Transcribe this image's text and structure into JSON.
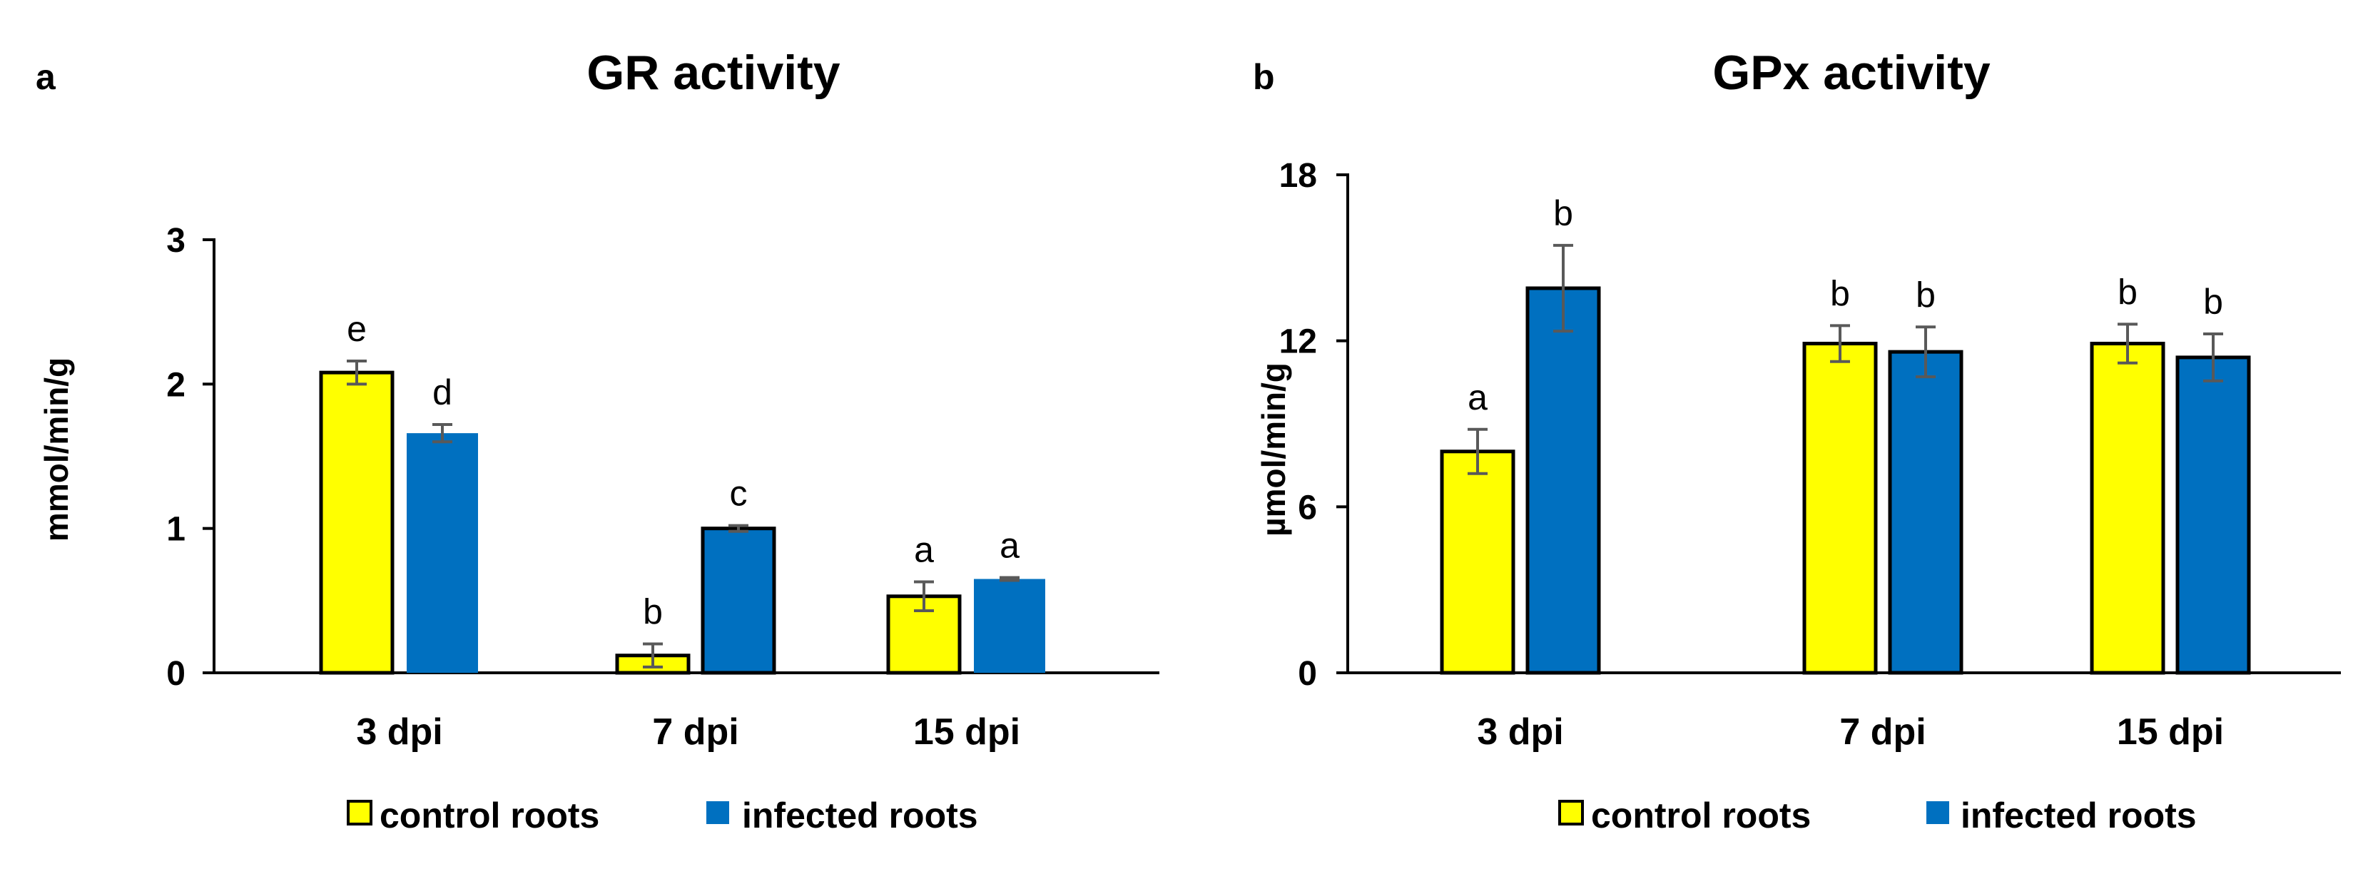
{
  "colors": {
    "control": "#FFFF00",
    "infected": "#0070C0",
    "axis": "#000000",
    "error_bar": "#595959"
  },
  "chart_data": [
    {
      "panel_label": "a",
      "type": "bar",
      "title": "GR activity",
      "xlabel": "",
      "ylabel": "mmol/min/g",
      "ylim": [
        0,
        3
      ],
      "yticks": [
        "0",
        "1",
        "2",
        "3"
      ],
      "categories": [
        "3 dpi",
        "7 dpi",
        "15 dpi"
      ],
      "series": [
        {
          "name": "control roots",
          "color_key": "control",
          "values": [
            2.08,
            0.12,
            0.53
          ],
          "errors": [
            0.08,
            0.08,
            0.1
          ],
          "letters": [
            "e",
            "b",
            "a"
          ],
          "outlined": true
        },
        {
          "name": "infected roots",
          "color_key": "infected",
          "values": [
            1.66,
            1.0,
            0.65
          ],
          "errors": [
            0.06,
            0.02,
            0.01
          ],
          "letters": [
            "d",
            "c",
            "a"
          ],
          "outlined_bars": [
            false,
            true,
            false
          ]
        }
      ],
      "legend": [
        {
          "label": "control roots",
          "color_key": "control"
        },
        {
          "label": "infected roots",
          "color_key": "infected"
        }
      ],
      "legend_placement": "bottom"
    },
    {
      "panel_label": "b",
      "type": "bar",
      "title": "GPx activity",
      "xlabel": "",
      "ylabel": "µmol/min/g",
      "ylim": [
        0,
        18
      ],
      "yticks": [
        "0",
        "6",
        "12",
        "18"
      ],
      "categories": [
        "3 dpi",
        "7 dpi",
        "15 dpi"
      ],
      "series": [
        {
          "name": "control roots",
          "color_key": "control",
          "values": [
            8.0,
            11.9,
            11.9
          ],
          "errors": [
            0.8,
            0.65,
            0.7
          ],
          "letters": [
            "a",
            "b",
            "b"
          ],
          "outlined": true
        },
        {
          "name": "infected roots",
          "color_key": "infected",
          "values": [
            13.9,
            11.6,
            11.4
          ],
          "errors": [
            1.55,
            0.9,
            0.85
          ],
          "letters": [
            "b",
            "b",
            "b"
          ],
          "outlined_bars": [
            true,
            true,
            true
          ]
        }
      ],
      "legend": [
        {
          "label": "control roots",
          "color_key": "control"
        },
        {
          "label": "infected roots",
          "color_key": "infected"
        }
      ],
      "legend_placement": "bottom"
    }
  ]
}
